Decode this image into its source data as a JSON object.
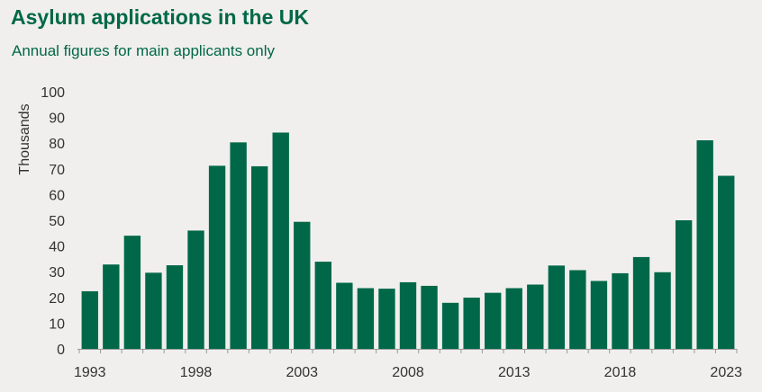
{
  "header": {
    "title": "Asylum applications in the UK",
    "subtitle": "Annual figures for main applicants only"
  },
  "colors": {
    "bar": "#006848",
    "title": "#006848",
    "background": "#f0efed",
    "axis": "#999999"
  },
  "chart_data": {
    "type": "bar",
    "title": "Asylum applications in the UK",
    "subtitle": "Annual figures for main applicants only",
    "xlabel": "",
    "ylabel": "Thousands",
    "ylim": [
      0,
      100
    ],
    "yticks": [
      0,
      10,
      20,
      30,
      40,
      50,
      60,
      70,
      80,
      90,
      100
    ],
    "xtick_labels": [
      "1993",
      "1998",
      "2003",
      "2008",
      "2013",
      "2018",
      "2023"
    ],
    "grid": false,
    "categories": [
      "1993",
      "1994",
      "1995",
      "1996",
      "1997",
      "1998",
      "1999",
      "2000",
      "2001",
      "2002",
      "2003",
      "2004",
      "2005",
      "2006",
      "2007",
      "2008",
      "2009",
      "2010",
      "2011",
      "2012",
      "2013",
      "2014",
      "2015",
      "2016",
      "2017",
      "2018",
      "2019",
      "2020",
      "2021",
      "2022",
      "2023"
    ],
    "values": [
      22.4,
      32.8,
      44.0,
      29.6,
      32.5,
      46.0,
      71.2,
      80.3,
      71.0,
      84.1,
      49.4,
      33.9,
      25.7,
      23.6,
      23.4,
      25.9,
      24.5,
      17.9,
      19.9,
      21.8,
      23.6,
      25.0,
      32.4,
      30.6,
      26.4,
      29.4,
      35.7,
      29.8,
      50.0,
      81.1,
      67.3
    ]
  }
}
